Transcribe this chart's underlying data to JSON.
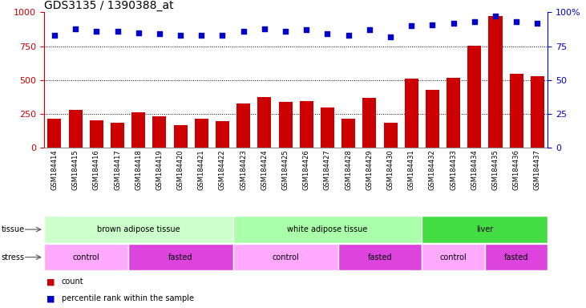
{
  "title": "GDS3135 / 1390388_at",
  "samples": [
    "GSM184414",
    "GSM184415",
    "GSM184416",
    "GSM184417",
    "GSM184418",
    "GSM184419",
    "GSM184420",
    "GSM184421",
    "GSM184422",
    "GSM184423",
    "GSM184424",
    "GSM184425",
    "GSM184426",
    "GSM184427",
    "GSM184428",
    "GSM184429",
    "GSM184430",
    "GSM184431",
    "GSM184432",
    "GSM184433",
    "GSM184434",
    "GSM184435",
    "GSM184436",
    "GSM184437"
  ],
  "counts": [
    215,
    280,
    205,
    185,
    260,
    235,
    170,
    215,
    200,
    325,
    375,
    340,
    345,
    295,
    215,
    370,
    185,
    510,
    430,
    515,
    755,
    975,
    545,
    530
  ],
  "percentiles": [
    83,
    88,
    86,
    86,
    85,
    84,
    83,
    83,
    83,
    86,
    88,
    86,
    87,
    84,
    83,
    87,
    82,
    90,
    91,
    92,
    93,
    97,
    93,
    92
  ],
  "bar_color": "#cc0000",
  "dot_color": "#0000cc",
  "ylim_left": [
    0,
    1000
  ],
  "ylim_right": [
    0,
    100
  ],
  "yticks_left": [
    0,
    250,
    500,
    750,
    1000
  ],
  "yticks_right": [
    0,
    25,
    50,
    75,
    100
  ],
  "ytick_labels_right": [
    "0",
    "25",
    "50",
    "75",
    "100%"
  ],
  "grid_values": [
    250,
    500,
    750
  ],
  "tissue_groups": [
    {
      "label": "brown adipose tissue",
      "start": 0,
      "end": 8,
      "color": "#ccffcc"
    },
    {
      "label": "white adipose tissue",
      "start": 9,
      "end": 17,
      "color": "#aaffaa"
    },
    {
      "label": "liver",
      "start": 18,
      "end": 23,
      "color": "#44dd44"
    }
  ],
  "stress_groups": [
    {
      "label": "control",
      "start": 0,
      "end": 3,
      "color": "#ffaaff"
    },
    {
      "label": "fasted",
      "start": 4,
      "end": 8,
      "color": "#dd44dd"
    },
    {
      "label": "control",
      "start": 9,
      "end": 13,
      "color": "#ffaaff"
    },
    {
      "label": "fasted",
      "start": 14,
      "end": 17,
      "color": "#dd44dd"
    },
    {
      "label": "control",
      "start": 18,
      "end": 20,
      "color": "#ffaaff"
    },
    {
      "label": "fasted",
      "start": 21,
      "end": 23,
      "color": "#dd44dd"
    }
  ],
  "legend_count_label": "count",
  "legend_pct_label": "percentile rank within the sample",
  "tissue_label": "tissue",
  "stress_label": "stress",
  "bg_color": "#ffffff",
  "title_fontsize": 10,
  "axis_color_left": "#cc0000",
  "axis_color_right": "#0000cc",
  "xtick_bg": "#dddddd"
}
